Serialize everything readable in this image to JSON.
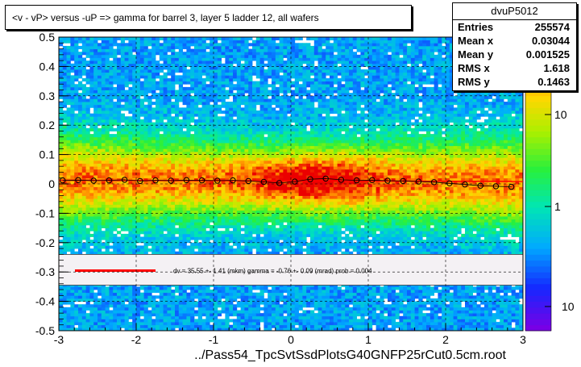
{
  "title": "<v - vP>       versus  -uP =>  gamma for barrel 3, layer 5 ladder 12, all wafers",
  "stats": {
    "name": "dvuP5012",
    "rows": [
      {
        "key": "Entries",
        "value": "255574"
      },
      {
        "key": "Mean x",
        "value": "0.03044"
      },
      {
        "key": "Mean y",
        "value": "0.001525"
      },
      {
        "key": "RMS x",
        "value": "1.618"
      },
      {
        "key": "RMS y",
        "value": "0.1463"
      }
    ]
  },
  "legend_text": "dv =    35.55 +-  1.41 (mkm) gamma =    -0.76 +-  0.09 (mrad) prob = 0.004",
  "colors": {
    "fit_line": "#ff0000",
    "profile_marker": "#000000"
  },
  "chart_data": {
    "type": "heatmap",
    "xlabel": "../Pass54_TpcSvtSsdPlotsG40GNFP25rCut0.5cm.root",
    "xlim": [
      -3,
      3
    ],
    "ylim": [
      -0.5,
      0.5
    ],
    "x_ticks": [
      "-3",
      "-2",
      "-1",
      "0",
      "1",
      "2",
      "3"
    ],
    "y_ticks": [
      "-0.5",
      "-0.4",
      "-0.3",
      "-0.2",
      "-0.1",
      "0",
      "0.1",
      "0.2",
      "0.3",
      "0.4",
      "0.5"
    ],
    "colorbar_ticks": [
      "10",
      "1",
      "10"
    ],
    "grid": true,
    "legend_band_y": [
      -0.345,
      -0.24
    ],
    "profile": {
      "x": [
        -2.95,
        -2.75,
        -2.55,
        -2.35,
        -2.15,
        -1.95,
        -1.75,
        -1.55,
        -1.35,
        -1.15,
        -0.95,
        -0.75,
        -0.55,
        -0.35,
        -0.15,
        0.05,
        0.25,
        0.45,
        0.65,
        0.85,
        1.05,
        1.25,
        1.45,
        1.65,
        1.85,
        2.05,
        2.25,
        2.45,
        2.65,
        2.85
      ],
      "y": [
        0.012,
        0.013,
        0.011,
        0.012,
        0.014,
        0.01,
        0.012,
        0.011,
        0.013,
        0.012,
        0.011,
        0.012,
        0.01,
        0.007,
        0.003,
        0.008,
        0.016,
        0.018,
        0.014,
        0.012,
        0.013,
        0.011,
        0.01,
        0.008,
        0.006,
        0.002,
        -0.002,
        -0.006,
        -0.008,
        -0.01
      ]
    },
    "fit": {
      "x": [
        -3,
        3
      ],
      "y": [
        0.0127,
        0.0083
      ]
    }
  }
}
